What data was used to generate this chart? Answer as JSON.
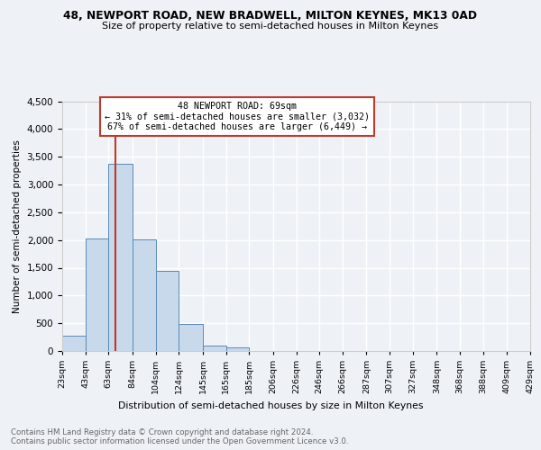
{
  "title1": "48, NEWPORT ROAD, NEW BRADWELL, MILTON KEYNES, MK13 0AD",
  "title2": "Size of property relative to semi-detached houses in Milton Keynes",
  "xlabel": "Distribution of semi-detached houses by size in Milton Keynes",
  "ylabel": "Number of semi-detached properties",
  "footer1": "Contains HM Land Registry data © Crown copyright and database right 2024.",
  "footer2": "Contains public sector information licensed under the Open Government Licence v3.0.",
  "bin_labels": [
    "23sqm",
    "43sqm",
    "63sqm",
    "84sqm",
    "104sqm",
    "124sqm",
    "145sqm",
    "165sqm",
    "185sqm",
    "206sqm",
    "226sqm",
    "246sqm",
    "266sqm",
    "287sqm",
    "307sqm",
    "327sqm",
    "348sqm",
    "368sqm",
    "388sqm",
    "409sqm",
    "429sqm"
  ],
  "bar_values": [
    270,
    2030,
    3370,
    2010,
    1450,
    480,
    95,
    60,
    0,
    0,
    0,
    0,
    0,
    0,
    0,
    0,
    0,
    0,
    0,
    0
  ],
  "bar_color": "#c9d9ec",
  "bar_edge_color": "#5a8ab5",
  "ylim": [
    0,
    4500
  ],
  "yticks": [
    0,
    500,
    1000,
    1500,
    2000,
    2500,
    3000,
    3500,
    4000,
    4500
  ],
  "property_line_x": 69,
  "annotation_title": "48 NEWPORT ROAD: 69sqm",
  "annotation_line1": "← 31% of semi-detached houses are smaller (3,032)",
  "annotation_line2": "67% of semi-detached houses are larger (6,449) →",
  "vline_color": "#c0392b",
  "annotation_box_color": "#ffffff",
  "annotation_box_edge": "#c0392b",
  "bg_color": "#eef2f7",
  "plot_bg_color": "#eef2f7",
  "grid_color": "#ffffff",
  "bin_edges": [
    23,
    43,
    63,
    84,
    104,
    124,
    145,
    165,
    185,
    206,
    226,
    246,
    266,
    287,
    307,
    327,
    348,
    368,
    388,
    409,
    429
  ]
}
